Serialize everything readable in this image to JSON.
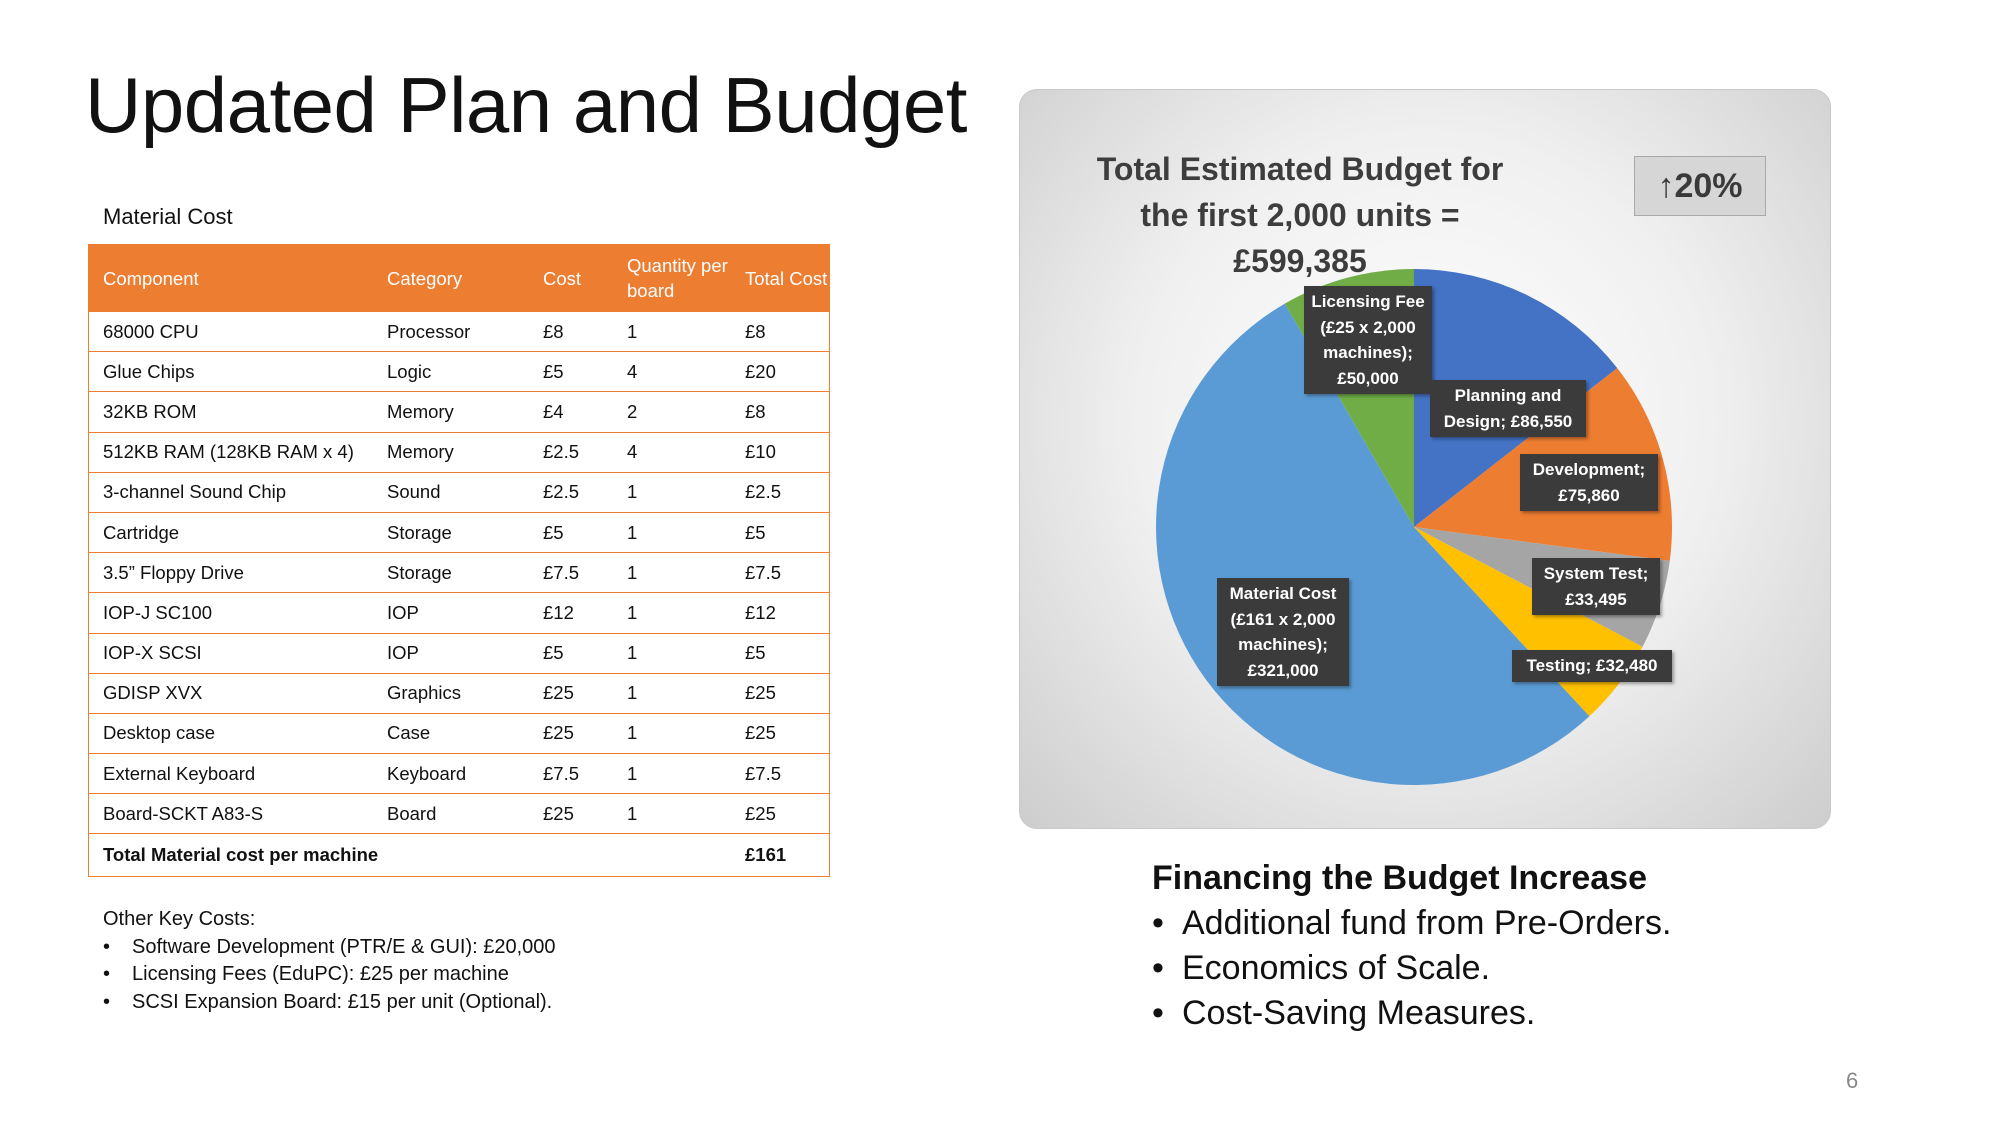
{
  "slide": {
    "title": "Updated Plan and Budget",
    "page_number": "6"
  },
  "material_table": {
    "caption": "Material Cost",
    "headers": [
      "Component",
      "Category",
      "Cost",
      "Quantity per board",
      "Total Cost"
    ],
    "rows": [
      [
        "68000 CPU",
        "Processor",
        "£8",
        "1",
        "£8"
      ],
      [
        "Glue Chips",
        "Logic",
        "£5",
        "4",
        "£20"
      ],
      [
        "32KB ROM",
        "Memory",
        "£4",
        "2",
        "£8"
      ],
      [
        "512KB RAM (128KB RAM x 4)",
        "Memory",
        "£2.5",
        "4",
        "£10"
      ],
      [
        "3-channel Sound Chip",
        "Sound",
        "£2.5",
        "1",
        "£2.5"
      ],
      [
        "Cartridge",
        "Storage",
        "£5",
        "1",
        "£5"
      ],
      [
        "3.5” Floppy Drive",
        "Storage",
        "£7.5",
        "1",
        "£7.5"
      ],
      [
        "IOP-J SC100",
        "IOP",
        "£12",
        "1",
        "£12"
      ],
      [
        "IOP-X SCSI",
        "IOP",
        "£5",
        "1",
        "£5"
      ],
      [
        "GDISP XVX",
        "Graphics",
        "£25",
        "1",
        "£25"
      ],
      [
        "Desktop case",
        "Case",
        "£25",
        "1",
        "£25"
      ],
      [
        "External Keyboard",
        "Keyboard",
        "£7.5",
        "1",
        "£7.5"
      ],
      [
        "Board-SCKT A83-S",
        "Board",
        "£25",
        "1",
        "£25"
      ]
    ],
    "total_label": "Total Material cost per machine",
    "total_value": "£161"
  },
  "other_costs": {
    "heading": "Other Key Costs:",
    "items": [
      "Software Development (PTR/E & GUI): £20,000",
      "Licensing Fees (EduPC): £25 per machine",
      "SCSI Expansion Board: £15 per unit (Optional)."
    ]
  },
  "chart_data": {
    "type": "pie",
    "title_line1": "Total Estimated Budget for",
    "title_line2": "the first 2,000 units = £599,385",
    "badge": {
      "arrow": "↑",
      "text": "20%"
    },
    "slices": [
      {
        "line1": "Planning and",
        "line2": "Design; £86,550",
        "value": 86550,
        "color": "#4472C4"
      },
      {
        "line1": "Development;",
        "line2": "£75,860",
        "value": 75860,
        "color": "#ED7D31"
      },
      {
        "line1": "System Test;",
        "line2": "£33,495",
        "value": 33495,
        "color": "#A5A5A5"
      },
      {
        "line1": "Testing; £32,480",
        "value": 32480,
        "color": "#FFC000"
      },
      {
        "line1": "Material Cost",
        "line2": "(£161 x 2,000",
        "line3": "machines);",
        "line4": "£321,000",
        "value": 321000,
        "color": "#5B9BD5"
      },
      {
        "line1": "Licensing Fee",
        "line2": "(£25 x 2,000",
        "line3": "machines);",
        "line4": "£50,000",
        "value": 50000,
        "color": "#70AD47"
      }
    ]
  },
  "financing": {
    "heading": "Financing the Budget Increase",
    "items": [
      "Additional fund from Pre-Orders.",
      "Economics of Scale.",
      "Cost-Saving Measures."
    ]
  }
}
